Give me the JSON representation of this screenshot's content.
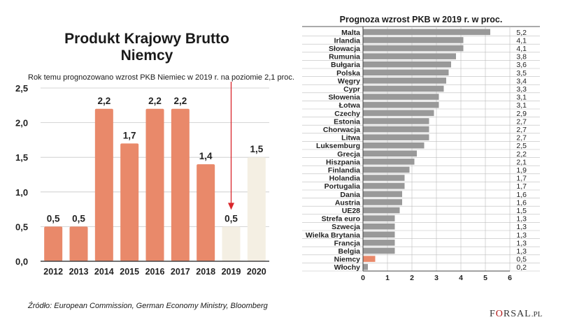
{
  "chart_data": [
    {
      "type": "bar",
      "title": "Produkt Krajowy Brutto Niemcy",
      "title_lines": [
        "Produkt Krajowy Brutto",
        "Niemcy"
      ],
      "annotation": "Rok temu prognozowano wzrost PKB Niemiec w 2019 r. na poziomie 2,1 proc.",
      "categories": [
        "2012",
        "2013",
        "2014",
        "2015",
        "2016",
        "2017",
        "2018",
        "2019",
        "2020"
      ],
      "values": [
        0.5,
        0.5,
        2.2,
        1.7,
        2.2,
        2.2,
        1.4,
        0.5,
        1.5
      ],
      "value_labels": [
        "0,5",
        "0,5",
        "2,2",
        "1,7",
        "2,2",
        "2,2",
        "1,4",
        "0,5",
        "1,5"
      ],
      "forecast": [
        false,
        false,
        false,
        false,
        false,
        false,
        false,
        true,
        true
      ],
      "previous_forecast_2019": 2.1,
      "ylim": [
        0,
        2.5
      ],
      "yticks": [
        0,
        0.5,
        1.0,
        1.5,
        2.0,
        2.5
      ],
      "ytick_labels": [
        "0,0",
        "0,5",
        "1,0",
        "1,5",
        "2,0",
        "2,5"
      ],
      "grid": true,
      "colors": {
        "actual": "#e9896a",
        "forecast": "#f4efe3",
        "arrow": "#d9262b",
        "grid": "#c8c8c8"
      }
    },
    {
      "type": "bar",
      "orientation": "horizontal",
      "title": "Prognoza wzrost PKB w 2019 r. w proc.",
      "categories": [
        "Malta",
        "Irlandia",
        "Słowacja",
        "Rumunia",
        "Bułgaria",
        "Polska",
        "Węgry",
        "Cypr",
        "Słowenia",
        "Łotwa",
        "Czechy",
        "Estonia",
        "Chorwacja",
        "Litwa",
        "Luksemburg",
        "Grecja",
        "Hiszpania",
        "Finlandia",
        "Holandia",
        "Portugalia",
        "Dania",
        "Austria",
        "UE28",
        "Strefa euro",
        "Szwecja",
        "Wielka Brytania",
        "Francja",
        "Belgia",
        "Niemcy",
        "Włochy"
      ],
      "values": [
        5.2,
        4.1,
        4.1,
        3.8,
        3.6,
        3.5,
        3.4,
        3.3,
        3.1,
        3.1,
        2.9,
        2.7,
        2.7,
        2.7,
        2.5,
        2.2,
        2.1,
        1.9,
        1.7,
        1.7,
        1.6,
        1.6,
        1.5,
        1.3,
        1.3,
        1.3,
        1.3,
        1.3,
        0.5,
        0.2
      ],
      "value_labels": [
        "5,2",
        "4,1",
        "4,1",
        "3,8",
        "3,6",
        "3,5",
        "3,4",
        "3,3",
        "3,1",
        "3,1",
        "2,9",
        "2,7",
        "2,7",
        "2,7",
        "2,5",
        "2,2",
        "2,1",
        "1,9",
        "1,7",
        "1,7",
        "1,6",
        "1,6",
        "1,5",
        "1,3",
        "1,3",
        "1,3",
        "1,3",
        "1,3",
        "0,5",
        "0,2"
      ],
      "highlight": "Niemcy",
      "xlim": [
        0,
        6
      ],
      "xticks": [
        0,
        1,
        2,
        3,
        4,
        5,
        6
      ],
      "grid": true,
      "colors": {
        "bar": "#999999",
        "highlight": "#e9896a",
        "grid": "#bdbdbd"
      }
    }
  ],
  "source": "Źródło: European Commission, German Economy Ministry, Bloomberg",
  "logo": {
    "part1": "F",
    "part2": "O",
    "part3": "RSAL",
    "part4": ".PL"
  }
}
